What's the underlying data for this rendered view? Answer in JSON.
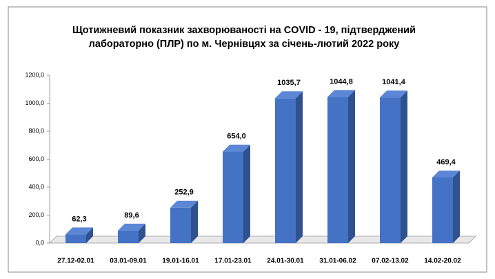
{
  "chart_data": {
    "type": "bar",
    "title": [
      "Щотижневий показник захворюваності  на COVID - 19, підтверджений",
      "лабораторно  (ПЛР) по м. Чернівцях за січень-лютий 2022 року"
    ],
    "categories": [
      "27.12-02.01",
      "03.01-09.01",
      "19.01-16.01",
      "17.01-23.01",
      "24.01-30.01",
      "31.01-06.02",
      "07.02-13.02",
      "14.02-20.02"
    ],
    "values": [
      62.3,
      89.6,
      252.9,
      654.0,
      1035.7,
      1044.8,
      1041.4,
      469.4
    ],
    "value_labels": [
      "62,3",
      "89,6",
      "252,9",
      "654,0",
      "1035,7",
      "1044,8",
      "1041,4",
      "469,4"
    ],
    "color": "#4472c4",
    "ylim": [
      0,
      1200
    ],
    "yticks": [
      {
        "value": 0,
        "label": "0,0"
      },
      {
        "value": 200,
        "label": "200,0"
      },
      {
        "value": 400,
        "label": "400,0"
      },
      {
        "value": 600,
        "label": "600,0"
      },
      {
        "value": 800,
        "label": "800,0"
      },
      {
        "value": 1000,
        "label": "1000,0"
      },
      {
        "value": 1200,
        "label": "1200,0"
      }
    ],
    "grid": false
  }
}
